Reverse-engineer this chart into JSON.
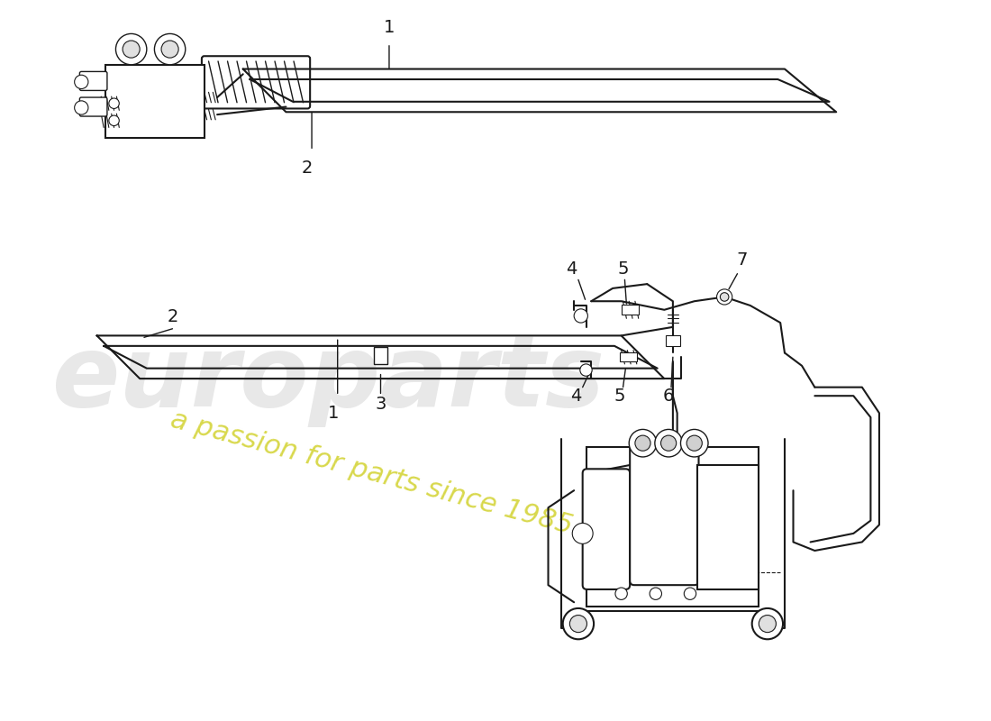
{
  "background_color": "#ffffff",
  "line_color": "#1a1a1a",
  "watermark_text1": "europarts",
  "watermark_text2": "a passion for parts since 1985",
  "watermark_color1": "#cccccc",
  "watermark_color2": "#c8c800",
  "figsize": [
    11.0,
    8.0
  ],
  "dpi": 100
}
